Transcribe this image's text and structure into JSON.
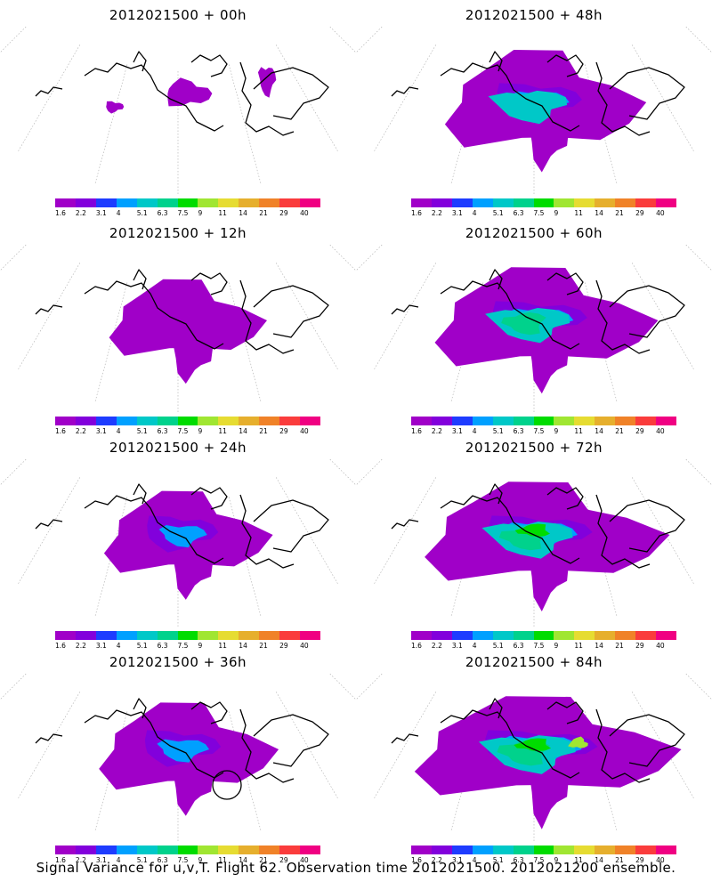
{
  "panels": [
    {
      "title": "2012021500 + 00h",
      "level": 0
    },
    {
      "title": "2012021500 + 48h",
      "level": 3
    },
    {
      "title": "2012021500 + 12h",
      "level": 1
    },
    {
      "title": "2012021500 + 60h",
      "level": 4
    },
    {
      "title": "2012021500 + 24h",
      "level": 1.5
    },
    {
      "title": "2012021500 + 72h",
      "level": 5
    },
    {
      "title": "2012021500 + 36h",
      "level": 2,
      "circle": true
    },
    {
      "title": "2012021500 + 84h",
      "level": 6
    }
  ],
  "colorbar": {
    "ticks": [
      "1.6",
      "2.2",
      "3.1",
      "4",
      "5.1",
      "6.3",
      "7.5",
      "9",
      "11",
      "14",
      "21",
      "29",
      "40"
    ],
    "colors": [
      "#a000c8",
      "#8200dc",
      "#1e3cff",
      "#00a0ff",
      "#00c8c8",
      "#00d28c",
      "#00dc00",
      "#a0e632",
      "#e6dc32",
      "#e6af2d",
      "#f08228",
      "#fa3c3c",
      "#f00082"
    ]
  },
  "footer": "Signal Variance for u,v,T. Flight 62. Observation time 2012021500. 2012021200 ensemble."
}
